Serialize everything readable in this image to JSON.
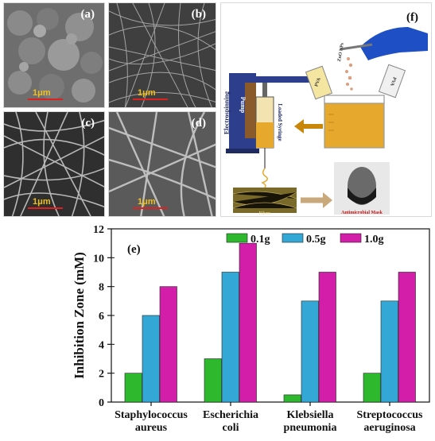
{
  "panels": {
    "a": {
      "label": "(a)",
      "scale": "1μm"
    },
    "b": {
      "label": "(b)",
      "scale": "1μm"
    },
    "c": {
      "label": "(c)",
      "scale": "1μm"
    },
    "d": {
      "label": "(d)",
      "scale": "1μm"
    },
    "f": {
      "label": "(f)",
      "zno_label": "ZnO NPs",
      "pump_label": "Pump",
      "electrospinning_label": "Electrospinning",
      "syringe_label": "Loaded Syringe",
      "bottle_left": "PVA",
      "bottle_right": "PVA",
      "fibers_label": "Fibers",
      "mask_label": "Antimicrobial Mask"
    }
  },
  "colors": {
    "bar_0_1g": "#2db82d",
    "bar_0_5g": "#33a8d6",
    "bar_1_0g": "#d21ea8",
    "beaker_liquid": "#e6a92e",
    "arrow": "#c8860a",
    "glove": "#1f4fc4"
  },
  "chart_data": {
    "type": "bar",
    "title": "(e)",
    "ylabel": "Inhibition Zone (mM)",
    "xlabel": "",
    "ylim": [
      0,
      12
    ],
    "yticks": [
      0,
      2,
      4,
      6,
      8,
      10,
      12
    ],
    "categories": [
      [
        "Staphylococcus",
        "aureus"
      ],
      [
        "Escherichia",
        "coli"
      ],
      [
        "Klebsiella",
        "pneumonia"
      ],
      [
        "Streptococcus",
        "aeruginosa"
      ]
    ],
    "series": [
      {
        "name": "0.1g",
        "values": [
          2,
          3,
          0.5,
          2
        ]
      },
      {
        "name": "0.5g",
        "values": [
          6,
          9,
          7,
          7
        ]
      },
      {
        "name": "1.0g",
        "values": [
          8,
          11,
          9,
          9
        ]
      }
    ],
    "legend_position": "top-right",
    "grid": false
  }
}
